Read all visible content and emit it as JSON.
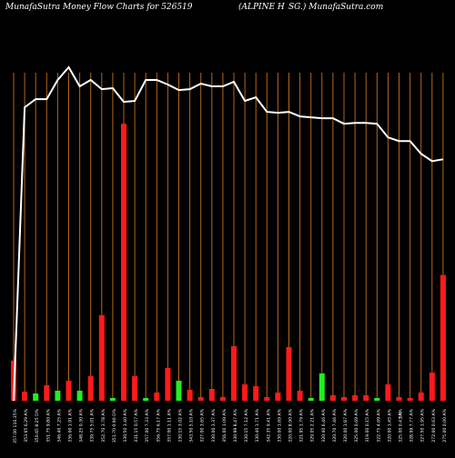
{
  "header": {
    "left": "MunafaSutra  Money Flow  Charts for 526519",
    "mid": "(ALPINE H",
    "right": "SG.) MunafaSutra.com"
  },
  "colors": {
    "background": "#000000",
    "up": "#ff1a1a",
    "down": "#22ee22",
    "line": "#ffffff",
    "grid": "#b5651d",
    "text": "#ffffff"
  },
  "chart_data": {
    "type": "bar",
    "series": [
      {
        "name": "money-flow-volume",
        "values": [
          44,
          10,
          8,
          17,
          11,
          22,
          11,
          27,
          94,
          3,
          304,
          27,
          3,
          9,
          36,
          22,
          12,
          4,
          13,
          4,
          60,
          18,
          16,
          4,
          9,
          59,
          11,
          3,
          30,
          6,
          4,
          6,
          6,
          3,
          18,
          4,
          3,
          9,
          31,
          138
        ],
        "colors": [
          "up",
          "up",
          "down",
          "up",
          "down",
          "up",
          "down",
          "up",
          "up",
          "down",
          "up",
          "up",
          "down",
          "up",
          "up",
          "down",
          "up",
          "up",
          "up",
          "up",
          "up",
          "up",
          "up",
          "up",
          "up",
          "up",
          "up",
          "down",
          "down",
          "up",
          "up",
          "up",
          "up",
          "down",
          "up",
          "up",
          "up",
          "up",
          "up",
          "up"
        ]
      },
      {
        "name": "price-line",
        "type": "line",
        "values": [
          0,
          322,
          331,
          331,
          352,
          366,
          345,
          352,
          342,
          343,
          328,
          329,
          352,
          352,
          347,
          341,
          342,
          348,
          345,
          345,
          350,
          329,
          333,
          317,
          316,
          317,
          312,
          311,
          310,
          310,
          304,
          305,
          305,
          304,
          289,
          285,
          285,
          271,
          263,
          265
        ]
      }
    ],
    "ylim": [
      0,
      360
    ],
    "grid": "vertical",
    "x_labels": [
      "357.00  110.35%",
      "353.65  6.29 A%",
      "350.65  8.25 D%",
      "351.75  9.80 A%",
      "346.40  7.25 A%",
      "336.00  1.91 A%",
      "348.25  0.30 A%",
      "339.75  5.01 A%",
      "352.70  3.78 A%",
      "351.70  0.90 D%",
      "330.50  3.40 A%",
      "331.15  0.57 A%",
      "357.00  7.33 A%",
      "356.75  6.17 A%",
      "357.00  1.11 A%",
      "330.15  3.02 A%",
      "343.50  5.10 A%",
      "327.00  3.65 A%",
      "330.00  3.37 A%",
      "356.00  1.09 A%",
      "330.99  8.47 A%",
      "330.15  7.12 A%",
      "330.40  1.71 A%",
      "342.35  9.41 A%",
      "330.00  1.69 A%",
      "320.00  8.90 A%",
      "321.95  1.79 A%",
      "329.05  2.21 A%",
      "320.40  6.46 A%",
      "320.70  7.46 A%",
      "320.00  1.87 A%",
      "325.00  0.69 A%",
      "319.00  0.15 A%",
      "322.75  4.69 A%",
      "320.00  1.45 A%",
      "325.00  0.43 A%",
      "328.99  7.77 A%",
      "327.50  1.95 A%",
      "272.00  0.63 A%",
      "275.00  0.00 A%"
    ],
    "x_extra": [
      "5%"
    ]
  }
}
